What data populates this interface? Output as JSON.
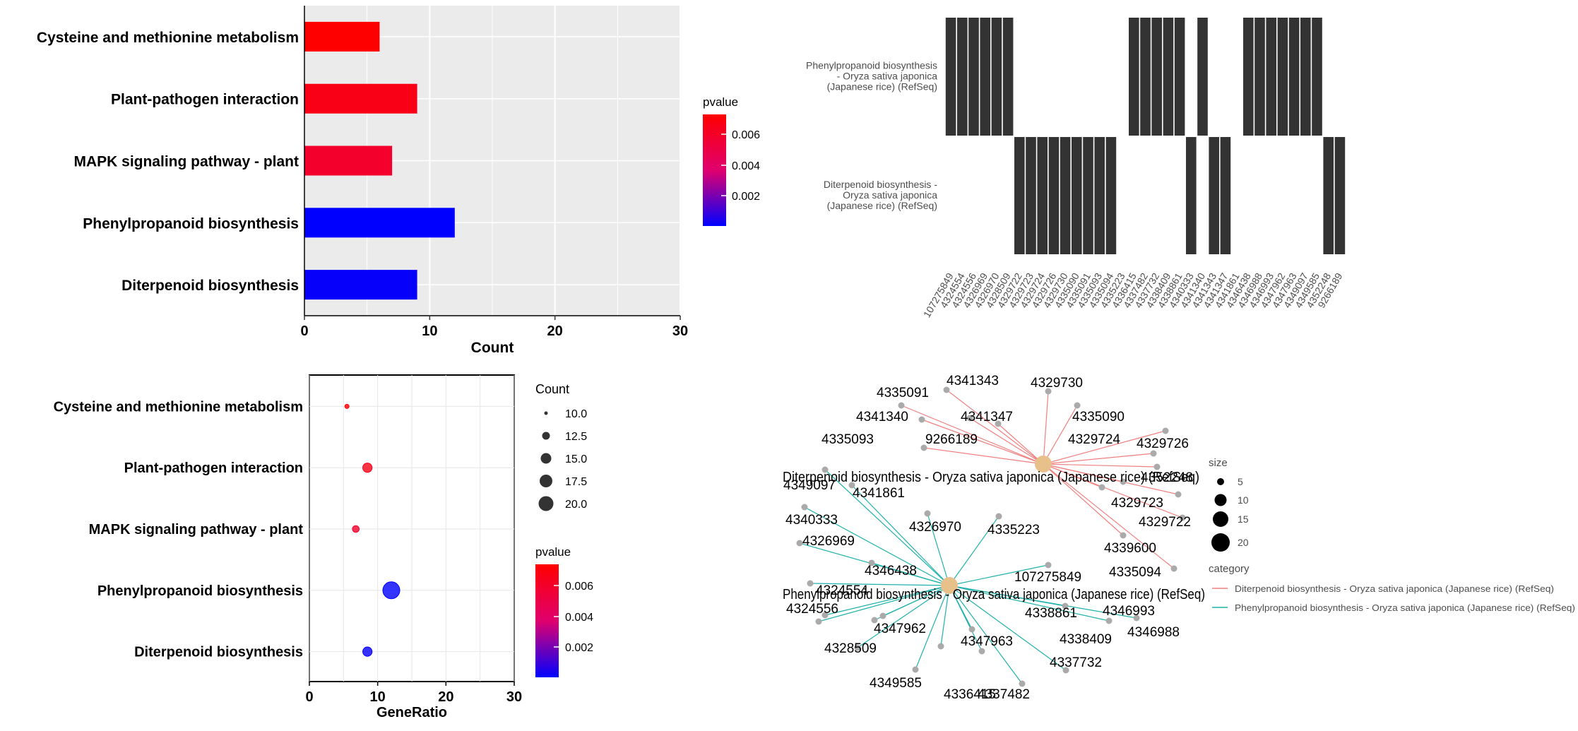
{
  "chart_data": [
    {
      "type": "bar",
      "title": "",
      "orientation": "horizontal",
      "categories": [
        "Cysteine and methionine metabolism",
        "Plant-pathogen interaction",
        "MAPK signaling pathway - plant",
        "Phenylpropanoid biosynthesis",
        "Diterpenoid biosynthesis"
      ],
      "values": [
        6,
        9,
        7,
        12,
        9
      ],
      "pvalues": [
        0.0072,
        0.0065,
        0.0058,
        0.0002,
        0.0003
      ],
      "xlabel": "Count",
      "ylabel": "",
      "xlim": [
        0,
        30
      ],
      "xticks": [
        "0",
        "10",
        "20",
        "30"
      ],
      "grid": true,
      "legend": {
        "title": "pvalue",
        "ticks": [
          "0.006",
          "0.004",
          "0.002"
        ],
        "placement": "right",
        "colors": [
          "#ff0000",
          "#0000ff"
        ]
      }
    },
    {
      "type": "heatmap",
      "title": "",
      "rows": [
        "Phenylpropanoid biosynthesis - Oryza sativa japonica (Japanese rice) (RefSeq)",
        "Diterpenoid biosynthesis - Oryza sativa japonica (Japanese rice) (RefSeq)"
      ],
      "row_label_lines": [
        [
          "Phenylpropanoid biosynthesis",
          "- Oryza sativa japonica",
          "(Japanese rice) (RefSeq)"
        ],
        [
          "Diterpenoid biosynthesis -",
          "Oryza sativa japonica",
          "(Japanese rice) (RefSeq)"
        ]
      ],
      "columns": [
        "107275849",
        "4324554",
        "4324556",
        "4326969",
        "4326970",
        "4328509",
        "4329722",
        "4329723",
        "4329724",
        "4329726",
        "4329730",
        "4335090",
        "4335091",
        "4335093",
        "4335094",
        "4335223",
        "4336415",
        "4337482",
        "4337732",
        "4338409",
        "4338861",
        "4340333",
        "4341340",
        "4341343",
        "4341347",
        "4341861",
        "4346438",
        "4346988",
        "4346993",
        "4347962",
        "4347963",
        "4349097",
        "4349585",
        "4352248",
        "9266189"
      ],
      "phenylpropanoid": [
        1,
        1,
        1,
        1,
        1,
        1,
        0,
        0,
        0,
        0,
        0,
        0,
        0,
        0,
        0,
        0,
        1,
        1,
        1,
        1,
        1,
        0,
        1,
        0,
        0,
        0,
        1,
        1,
        1,
        1,
        1,
        1,
        1,
        0,
        0
      ],
      "diterpenoid": [
        0,
        0,
        0,
        0,
        0,
        0,
        1,
        1,
        1,
        1,
        1,
        1,
        1,
        1,
        1,
        0,
        0,
        0,
        0,
        0,
        0,
        1,
        0,
        1,
        1,
        0,
        0,
        0,
        0,
        0,
        0,
        0,
        0,
        1,
        1
      ],
      "fill_color": "#333333"
    },
    {
      "type": "scatter",
      "title": "",
      "categories": [
        "Cysteine and methionine metabolism",
        "Plant-pathogen interaction",
        "MAPK signaling pathway - plant",
        "Phenylpropanoid biosynthesis",
        "Diterpenoid biosynthesis"
      ],
      "x": [
        5.5,
        8.5,
        6.8,
        12,
        8.5
      ],
      "counts": [
        9,
        13,
        11,
        19,
        13
      ],
      "pvalues": [
        0.0072,
        0.0065,
        0.0058,
        0.0002,
        0.0003
      ],
      "xlabel": "GeneRatio",
      "ylabel": "",
      "xlim": [
        0,
        30
      ],
      "xticks": [
        "0",
        "10",
        "20",
        "30"
      ],
      "grid": true,
      "size_legend": {
        "title": "Count",
        "labels": [
          "10.0",
          "12.5",
          "15.0",
          "17.5",
          "20.0"
        ]
      },
      "color_legend": {
        "title": "pvalue",
        "ticks": [
          "0.006",
          "0.004",
          "0.002"
        ],
        "colors": [
          "#ff0000",
          "#0000ff"
        ]
      }
    },
    {
      "type": "network",
      "title": "",
      "hub_labels": [
        "Diterpenoid biosynthesis - Oryza sativa japonica (Japanese rice) (RefSeq)",
        "Phenylpropanoid biosynthesis - Oryza sativa japonica (Japanese rice) (RefSeq)"
      ],
      "diterpenoid_genes": [
        "4341343",
        "4329730",
        "4335091",
        "4335090",
        "4341340",
        "4341347",
        "4329724",
        "4329726",
        "4335093",
        "9266189",
        "4352248",
        "4329723",
        "4329722",
        "4339600",
        "4335094"
      ],
      "phenylpropanoid_genes": [
        "4349097",
        "4341861",
        "4340333",
        "4326970",
        "4335223",
        "4326969",
        "107275849",
        "4346438",
        "4324554",
        "4324556",
        "4338861",
        "4346993",
        "4347962",
        "4347963",
        "4338409",
        "4346988",
        "4328509",
        "4337732",
        "4349585",
        "4336415",
        "4337482"
      ],
      "size_legend": {
        "title": "size",
        "labels": [
          "5",
          "10",
          "15",
          "20"
        ]
      },
      "category_legend": {
        "title": "category",
        "items": [
          "Diterpenoid biosynthesis - Oryza sativa japonica (Japanese rice) (RefSeq)",
          "Phenylpropanoid biosynthesis - Oryza sativa japonica (Japanese rice) (RefSeq)"
        ],
        "colors": [
          "#f08080",
          "#20b2aa"
        ]
      },
      "node_color": "#aaaaaa",
      "hub_color": "#e8c08a"
    }
  ]
}
